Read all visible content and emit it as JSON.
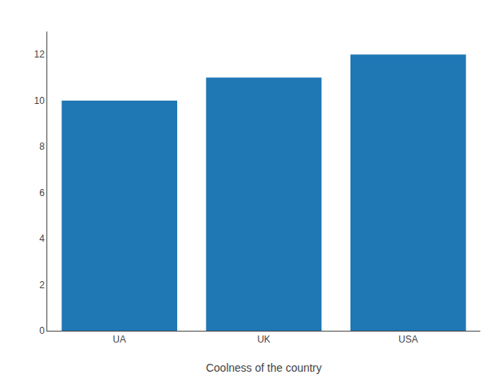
{
  "chart_data": {
    "type": "bar",
    "categories": [
      "UA",
      "UK",
      "USA"
    ],
    "values": [
      10,
      11,
      12
    ],
    "color": "#1f77b4",
    "xlabel": "Coolness of the country",
    "ylim": [
      0,
      13
    ],
    "yticks": [
      0,
      2,
      4,
      6,
      8,
      10,
      12
    ],
    "grid": false
  }
}
